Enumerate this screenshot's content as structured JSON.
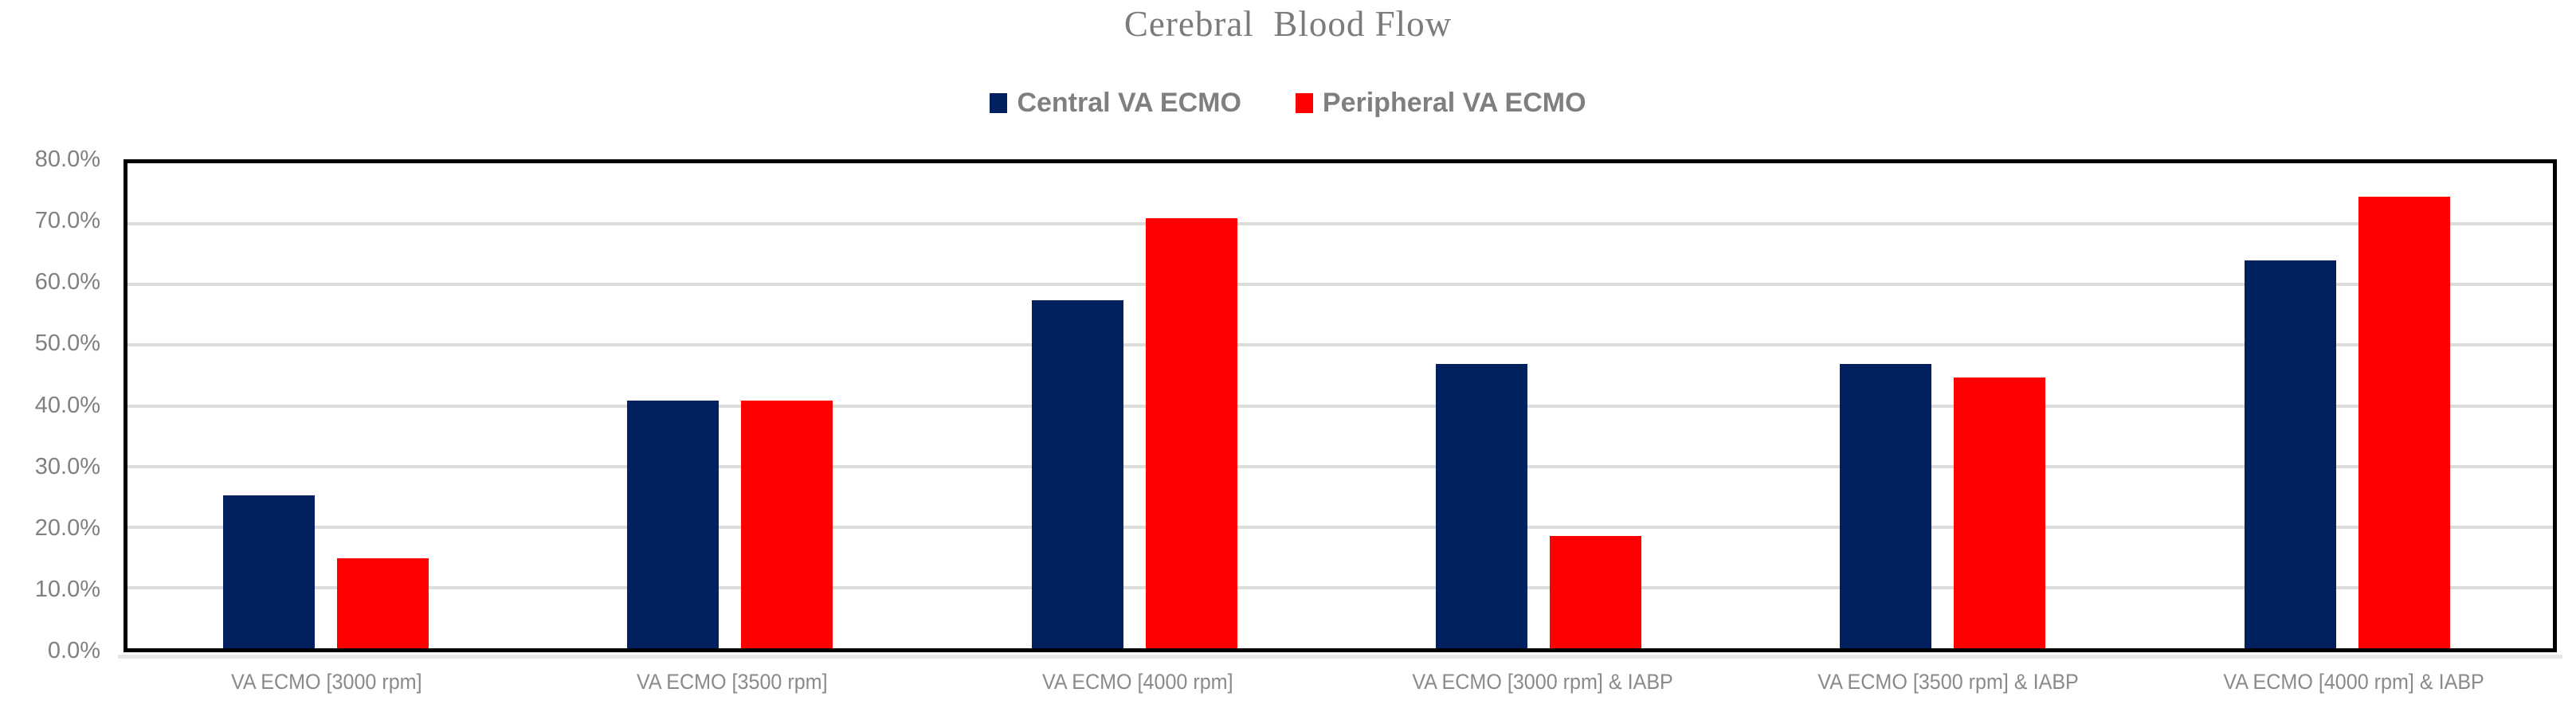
{
  "title": {
    "text": "Cerebral  Blood Flow"
  },
  "legend": {
    "items": [
      {
        "label": "Central VA ECMO",
        "color": "#002060"
      },
      {
        "label": "Peripheral VA ECMO",
        "color": "#FF0000"
      }
    ]
  },
  "y_axis": {
    "tick_labels": [
      "0.0%",
      "10.0%",
      "20.0%",
      "30.0%",
      "40.0%",
      "50.0%",
      "60.0%",
      "70.0%",
      "80.0%"
    ],
    "min": 0,
    "max": 80,
    "step": 10
  },
  "x_axis": {
    "categories": [
      "VA ECMO [3000 rpm]",
      "VA ECMO [3500 rpm]",
      "VA ECMO [4000 rpm]",
      "VA ECMO [3000 rpm] & IABP",
      "VA ECMO [3500 rpm] & IABP",
      "VA ECMO [4000 rpm] & IABP"
    ]
  },
  "chart_data": {
    "type": "bar",
    "title": "Cerebral  Blood Flow",
    "categories": [
      "VA ECMO [3000 rpm]",
      "VA ECMO [3500 rpm]",
      "VA ECMO [4000 rpm]",
      "VA ECMO [3000 rpm] & IABP",
      "VA ECMO [3500 rpm] & IABP",
      "VA ECMO [4000 rpm] & IABP"
    ],
    "series": [
      {
        "name": "Central VA ECMO",
        "color": "#002060",
        "values": [
          25.2,
          40.7,
          57.2,
          46.8,
          46.8,
          63.8
        ]
      },
      {
        "name": "Peripheral VA ECMO",
        "color": "#FF0000",
        "values": [
          14.8,
          40.7,
          70.7,
          18.5,
          44.5,
          74.2
        ]
      }
    ],
    "xlabel": "",
    "ylabel": "",
    "ylim": [
      0,
      80
    ],
    "y_tick_format": "percent_one_decimal",
    "grid": "horizontal",
    "gridline_color": "#dcdcdc",
    "plot_border_color": "#000000",
    "legend_position": "top-center",
    "title_color": "#7b7b7b",
    "tick_label_color": "#808080"
  }
}
